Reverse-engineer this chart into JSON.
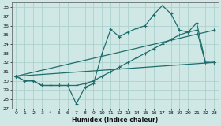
{
  "xlabel": "Humidex (Indice chaleur)",
  "bg_color": "#cfe8e5",
  "grid_color": "#a8ceca",
  "line_color": "#1e6e6e",
  "xlim": [
    -0.5,
    23.5
  ],
  "ylim": [
    27,
    38.5
  ],
  "yticks": [
    27,
    28,
    29,
    30,
    31,
    32,
    33,
    34,
    35,
    36,
    37,
    38
  ],
  "xticks": [
    0,
    1,
    2,
    3,
    4,
    5,
    6,
    7,
    8,
    9,
    10,
    11,
    12,
    13,
    14,
    15,
    16,
    17,
    18,
    19,
    20,
    21,
    22,
    23
  ],
  "series1": [
    30.5,
    30.0,
    30.0,
    29.5,
    29.5,
    29.5,
    29.5,
    27.5,
    29.3,
    29.7,
    33.0,
    35.6,
    34.8,
    35.3,
    35.7,
    36.0,
    37.2,
    38.2,
    37.3,
    35.5,
    35.3,
    36.3,
    32.0,
    32.0
  ],
  "series2_x": [
    0,
    23
  ],
  "series2_y": [
    30.5,
    32.0
  ],
  "series3": [
    30.5,
    30.0,
    30.0,
    29.5,
    29.5,
    29.5,
    29.5,
    29.5,
    29.7,
    30.0,
    30.5,
    31.0,
    31.5,
    32.0,
    32.5,
    33.0,
    33.5,
    34.0,
    34.5,
    35.0,
    35.3,
    35.5,
    32.0,
    32.0
  ],
  "series4_x": [
    0,
    23
  ],
  "series4_y": [
    30.5,
    35.5
  ]
}
